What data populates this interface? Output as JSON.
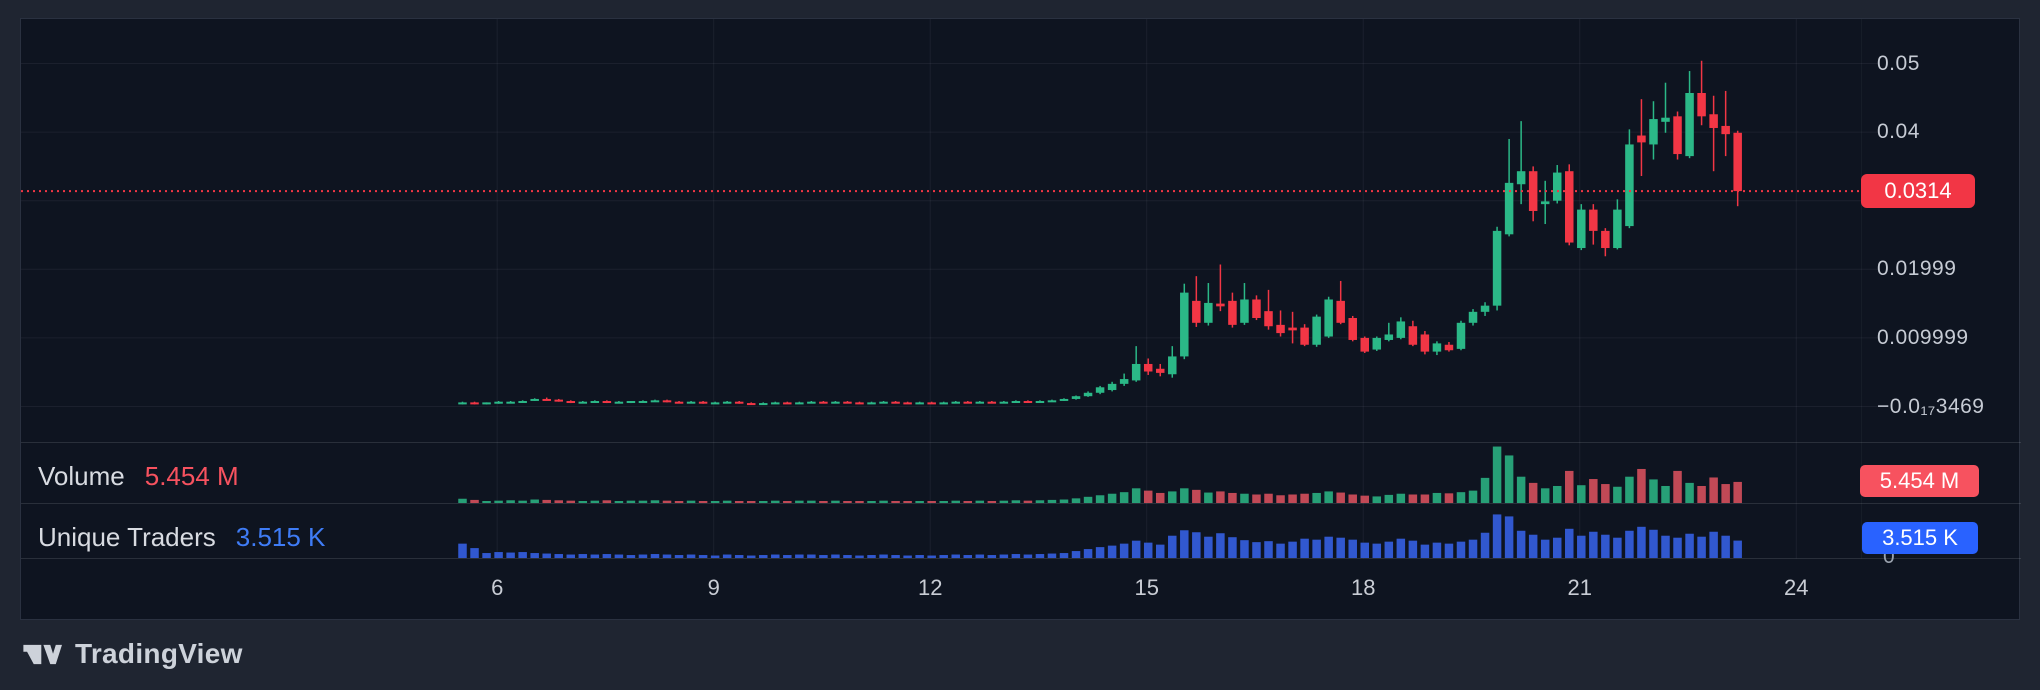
{
  "watermark": {
    "brand": "TradingView"
  },
  "price_scale": {
    "ticks": [
      {
        "label": "0.05",
        "value": 0.05
      },
      {
        "label": "0.04",
        "value": 0.04
      },
      {
        "label": "0.03",
        "value": 0.03
      },
      {
        "label": "0.01999",
        "value": 0.02
      },
      {
        "label": "0.009999",
        "value": 0.01
      },
      {
        "label": "−0.0₁₇3469",
        "value": 0.0
      }
    ],
    "last_price_label": "0.0314",
    "last_price_value": 0.0314
  },
  "time_scale": {
    "ticks": [
      {
        "label": "6",
        "day": 6
      },
      {
        "label": "9",
        "day": 9
      },
      {
        "label": "12",
        "day": 12
      },
      {
        "label": "15",
        "day": 15
      },
      {
        "label": "18",
        "day": 18
      },
      {
        "label": "21",
        "day": 21
      },
      {
        "label": "24",
        "day": 24
      }
    ]
  },
  "volume_panel": {
    "label": "Volume",
    "value_label": "5.454 M",
    "last_value_m": 5.454
  },
  "traders_panel": {
    "label": "Unique Traders",
    "value_label": "3.515 K",
    "last_value_k": 3.515,
    "zero_label": "0"
  },
  "colors": {
    "up": "#2bb887",
    "down": "#f23645",
    "vol_up": "#2bb887",
    "vol_down": "#e05260",
    "traders_bar": "#3158cf",
    "accent_red": "#f23645",
    "accent_blue": "#2962ff",
    "value_red": "#f7525f",
    "value_blue": "#3f7cf6",
    "grid": "rgba(240,243,250,0.06)",
    "divider": "rgba(240,243,250,0.12)",
    "panel_bg": "#0e1420",
    "outer_bg": "#1f2531",
    "axis_text": "#c6cbd4"
  },
  "chart_data": {
    "type": "candlestick",
    "x_unit": "day of month",
    "x_start_day": 5.5,
    "candles_per_day": 6,
    "visible_price_range": [
      0,
      0.055
    ],
    "grid_prices": [
      0.05,
      0.04,
      0.03,
      0.02,
      0.01,
      0
    ],
    "grid_days": [
      6,
      9,
      12,
      15,
      18,
      21,
      24
    ],
    "last_price": 0.0314,
    "volume_scale_max_m": 15,
    "traders_scale_max_k": 10.5,
    "series": {
      "ohlc": [
        [
          0.0004,
          0.0007,
          0.0003,
          0.0006
        ],
        [
          0.0006,
          0.0007,
          0.0003,
          0.0004
        ],
        [
          0.0004,
          0.0006,
          0.0003,
          0.0006
        ],
        [
          0.0005,
          0.0008,
          0.0004,
          0.0007
        ],
        [
          0.0006,
          0.0008,
          0.0005,
          0.0007
        ],
        [
          0.0007,
          0.0009,
          0.0006,
          0.0008
        ],
        [
          0.0009,
          0.0012,
          0.0008,
          0.0011
        ],
        [
          0.0011,
          0.0013,
          0.0009,
          0.001
        ],
        [
          0.001,
          0.0011,
          0.0007,
          0.0008
        ],
        [
          0.0008,
          0.0009,
          0.0005,
          0.0006
        ],
        [
          0.0006,
          0.0008,
          0.0005,
          0.0007
        ],
        [
          0.0007,
          0.0009,
          0.0006,
          0.0008
        ],
        [
          0.0008,
          0.0009,
          0.0005,
          0.0006
        ],
        [
          0.0006,
          0.0008,
          0.0005,
          0.0007
        ],
        [
          0.0006,
          0.0008,
          0.0005,
          0.0008
        ],
        [
          0.0007,
          0.0009,
          0.0006,
          0.0008
        ],
        [
          0.0008,
          0.001,
          0.0007,
          0.0009
        ],
        [
          0.0009,
          0.001,
          0.0006,
          0.0007
        ],
        [
          0.0007,
          0.0008,
          0.0005,
          0.0006
        ],
        [
          0.0006,
          0.0008,
          0.0005,
          0.0007
        ],
        [
          0.0007,
          0.0008,
          0.0004,
          0.0005
        ],
        [
          0.0005,
          0.0007,
          0.0004,
          0.0006
        ],
        [
          0.0006,
          0.0008,
          0.0005,
          0.0007
        ],
        [
          0.0007,
          0.0008,
          0.0004,
          0.0005
        ],
        [
          0.0005,
          0.0006,
          0.0003,
          0.0004
        ],
        [
          0.0004,
          0.0006,
          0.0003,
          0.0005
        ],
        [
          0.0005,
          0.0007,
          0.0004,
          0.0006
        ],
        [
          0.0006,
          0.0007,
          0.0004,
          0.0005
        ],
        [
          0.0005,
          0.0007,
          0.0004,
          0.0006
        ],
        [
          0.0006,
          0.0008,
          0.0005,
          0.0007
        ],
        [
          0.0007,
          0.0008,
          0.0005,
          0.0006
        ],
        [
          0.0006,
          0.0008,
          0.0005,
          0.0007
        ],
        [
          0.0007,
          0.0008,
          0.0005,
          0.0006
        ],
        [
          0.0006,
          0.0007,
          0.0004,
          0.0005
        ],
        [
          0.0005,
          0.0007,
          0.0004,
          0.0006
        ],
        [
          0.0006,
          0.0008,
          0.0005,
          0.0007
        ],
        [
          0.0007,
          0.0008,
          0.0005,
          0.0006
        ],
        [
          0.0006,
          0.0007,
          0.0004,
          0.0005
        ],
        [
          0.0005,
          0.0007,
          0.0004,
          0.0006
        ],
        [
          0.0006,
          0.0007,
          0.0004,
          0.0005
        ],
        [
          0.0005,
          0.0007,
          0.0004,
          0.0006
        ],
        [
          0.0006,
          0.0008,
          0.0005,
          0.0007
        ],
        [
          0.0007,
          0.0008,
          0.0005,
          0.0006
        ],
        [
          0.0006,
          0.0008,
          0.0005,
          0.0007
        ],
        [
          0.0007,
          0.0008,
          0.0005,
          0.0006
        ],
        [
          0.0006,
          0.0008,
          0.0005,
          0.0007
        ],
        [
          0.0007,
          0.0009,
          0.0006,
          0.0008
        ],
        [
          0.0008,
          0.0009,
          0.0006,
          0.0007
        ],
        [
          0.0007,
          0.0009,
          0.0006,
          0.0008
        ],
        [
          0.0008,
          0.001,
          0.0007,
          0.0009
        ],
        [
          0.0009,
          0.0012,
          0.0008,
          0.0011
        ],
        [
          0.0011,
          0.0016,
          0.001,
          0.0015
        ],
        [
          0.0015,
          0.0022,
          0.0014,
          0.002
        ],
        [
          0.002,
          0.003,
          0.0018,
          0.0028
        ],
        [
          0.0024,
          0.0036,
          0.0022,
          0.0033
        ],
        [
          0.0033,
          0.0048,
          0.003,
          0.004
        ],
        [
          0.0038,
          0.0088,
          0.0036,
          0.0062
        ],
        [
          0.0062,
          0.007,
          0.0046,
          0.0051
        ],
        [
          0.0055,
          0.0062,
          0.0044,
          0.0049
        ],
        [
          0.0047,
          0.0088,
          0.0042,
          0.0073
        ],
        [
          0.0073,
          0.0179,
          0.0069,
          0.0166
        ],
        [
          0.0154,
          0.019,
          0.0116,
          0.0122
        ],
        [
          0.0122,
          0.018,
          0.0118,
          0.0151
        ],
        [
          0.015,
          0.0207,
          0.0139,
          0.0146
        ],
        [
          0.0154,
          0.0166,
          0.0115,
          0.0119
        ],
        [
          0.0122,
          0.018,
          0.0119,
          0.0156
        ],
        [
          0.0156,
          0.0162,
          0.0126,
          0.0129
        ],
        [
          0.0139,
          0.017,
          0.0112,
          0.0117
        ],
        [
          0.0119,
          0.014,
          0.0102,
          0.0107
        ],
        [
          0.0115,
          0.0138,
          0.0092,
          0.0111
        ],
        [
          0.0115,
          0.012,
          0.0088,
          0.009
        ],
        [
          0.009,
          0.0134,
          0.0087,
          0.0131
        ],
        [
          0.0102,
          0.016,
          0.01,
          0.0156
        ],
        [
          0.0154,
          0.0183,
          0.012,
          0.0122
        ],
        [
          0.0129,
          0.0132,
          0.0095,
          0.0097
        ],
        [
          0.01,
          0.0102,
          0.0078,
          0.008
        ],
        [
          0.0083,
          0.0102,
          0.0081,
          0.01
        ],
        [
          0.0097,
          0.0122,
          0.0095,
          0.0105
        ],
        [
          0.01,
          0.013,
          0.0098,
          0.0124
        ],
        [
          0.0117,
          0.0125,
          0.0088,
          0.009
        ],
        [
          0.0105,
          0.011,
          0.0076,
          0.008
        ],
        [
          0.008,
          0.0095,
          0.0075,
          0.0092
        ],
        [
          0.009,
          0.0094,
          0.008,
          0.0082
        ],
        [
          0.0084,
          0.0125,
          0.0082,
          0.0122
        ],
        [
          0.0122,
          0.0142,
          0.0118,
          0.0138
        ],
        [
          0.0138,
          0.0152,
          0.0132,
          0.0147
        ],
        [
          0.0147,
          0.0262,
          0.014,
          0.0256
        ],
        [
          0.0251,
          0.039,
          0.0248,
          0.0326
        ],
        [
          0.0324,
          0.0416,
          0.0295,
          0.0343
        ],
        [
          0.0343,
          0.035,
          0.027,
          0.0285
        ],
        [
          0.0295,
          0.0329,
          0.0266,
          0.0299
        ],
        [
          0.03,
          0.0352,
          0.0296,
          0.0341
        ],
        [
          0.0343,
          0.0353,
          0.0235,
          0.0239
        ],
        [
          0.0231,
          0.0295,
          0.0228,
          0.0287
        ],
        [
          0.0287,
          0.0295,
          0.0236,
          0.0256
        ],
        [
          0.0256,
          0.026,
          0.0219,
          0.0231
        ],
        [
          0.0231,
          0.0302,
          0.0229,
          0.0287
        ],
        [
          0.0263,
          0.0404,
          0.026,
          0.0382
        ],
        [
          0.0395,
          0.0448,
          0.0336,
          0.0385
        ],
        [
          0.0382,
          0.0445,
          0.036,
          0.0419
        ],
        [
          0.0415,
          0.0472,
          0.0399,
          0.0421
        ],
        [
          0.0423,
          0.043,
          0.036,
          0.0368
        ],
        [
          0.0365,
          0.0489,
          0.0362,
          0.0457
        ],
        [
          0.0457,
          0.0504,
          0.041,
          0.0423
        ],
        [
          0.0426,
          0.0453,
          0.0343,
          0.0406
        ],
        [
          0.0409,
          0.046,
          0.0365,
          0.0397
        ],
        [
          0.0399,
          0.0402,
          0.0292,
          0.0314
        ]
      ],
      "volume_m": [
        1.1,
        0.8,
        0.5,
        0.6,
        0.7,
        0.6,
        0.9,
        0.8,
        0.7,
        0.6,
        0.5,
        0.6,
        0.7,
        0.5,
        0.6,
        0.6,
        0.7,
        0.6,
        0.5,
        0.6,
        0.5,
        0.4,
        0.6,
        0.5,
        0.4,
        0.5,
        0.6,
        0.5,
        0.6,
        0.6,
        0.5,
        0.6,
        0.5,
        0.4,
        0.5,
        0.6,
        0.5,
        0.4,
        0.5,
        0.4,
        0.5,
        0.6,
        0.5,
        0.6,
        0.5,
        0.6,
        0.7,
        0.6,
        0.7,
        0.8,
        0.9,
        1.2,
        1.6,
        2.0,
        2.4,
        2.8,
        3.8,
        3.2,
        2.6,
        3.0,
        3.8,
        3.4,
        2.7,
        3.0,
        2.6,
        2.4,
        2.2,
        2.4,
        2.0,
        2.2,
        2.4,
        2.6,
        3.0,
        2.7,
        2.2,
        1.9,
        1.7,
        2.1,
        2.4,
        2.2,
        2.2,
        2.6,
        2.5,
        2.8,
        3.2,
        6.5,
        14.6,
        12.3,
        6.8,
        5.2,
        3.8,
        4.4,
        8.3,
        4.6,
        6.2,
        4.9,
        4.2,
        6.8,
        8.8,
        6.1,
        4.4,
        8.3,
        5.2,
        4.4,
        6.6,
        4.9,
        5.454
      ],
      "unique_traders_k": [
        2.9,
        2.0,
        1.0,
        1.2,
        1.1,
        1.2,
        1.0,
        0.9,
        0.8,
        0.7,
        0.8,
        0.7,
        0.8,
        0.7,
        0.6,
        0.7,
        0.8,
        0.7,
        0.6,
        0.7,
        0.6,
        0.5,
        0.7,
        0.6,
        0.5,
        0.6,
        0.7,
        0.6,
        0.7,
        0.7,
        0.6,
        0.7,
        0.6,
        0.5,
        0.6,
        0.7,
        0.6,
        0.5,
        0.6,
        0.5,
        0.6,
        0.7,
        0.6,
        0.7,
        0.6,
        0.7,
        0.8,
        0.7,
        0.8,
        0.9,
        1.0,
        1.4,
        1.8,
        2.2,
        2.5,
        2.9,
        3.5,
        3.1,
        2.7,
        4.5,
        5.6,
        5.2,
        4.3,
        5.0,
        4.2,
        3.6,
        3.2,
        3.4,
        2.9,
        3.3,
        3.9,
        3.7,
        4.3,
        4.1,
        3.7,
        3.1,
        2.9,
        3.3,
        3.9,
        3.5,
        2.7,
        3.1,
        2.9,
        3.3,
        3.7,
        5.1,
        8.8,
        8.4,
        5.5,
        4.7,
        3.7,
        4.1,
        5.9,
        4.5,
        5.3,
        4.7,
        4.1,
        5.5,
        6.3,
        5.7,
        4.5,
        4.1,
        4.9,
        4.3,
        5.3,
        4.5,
        3.515
      ]
    }
  }
}
